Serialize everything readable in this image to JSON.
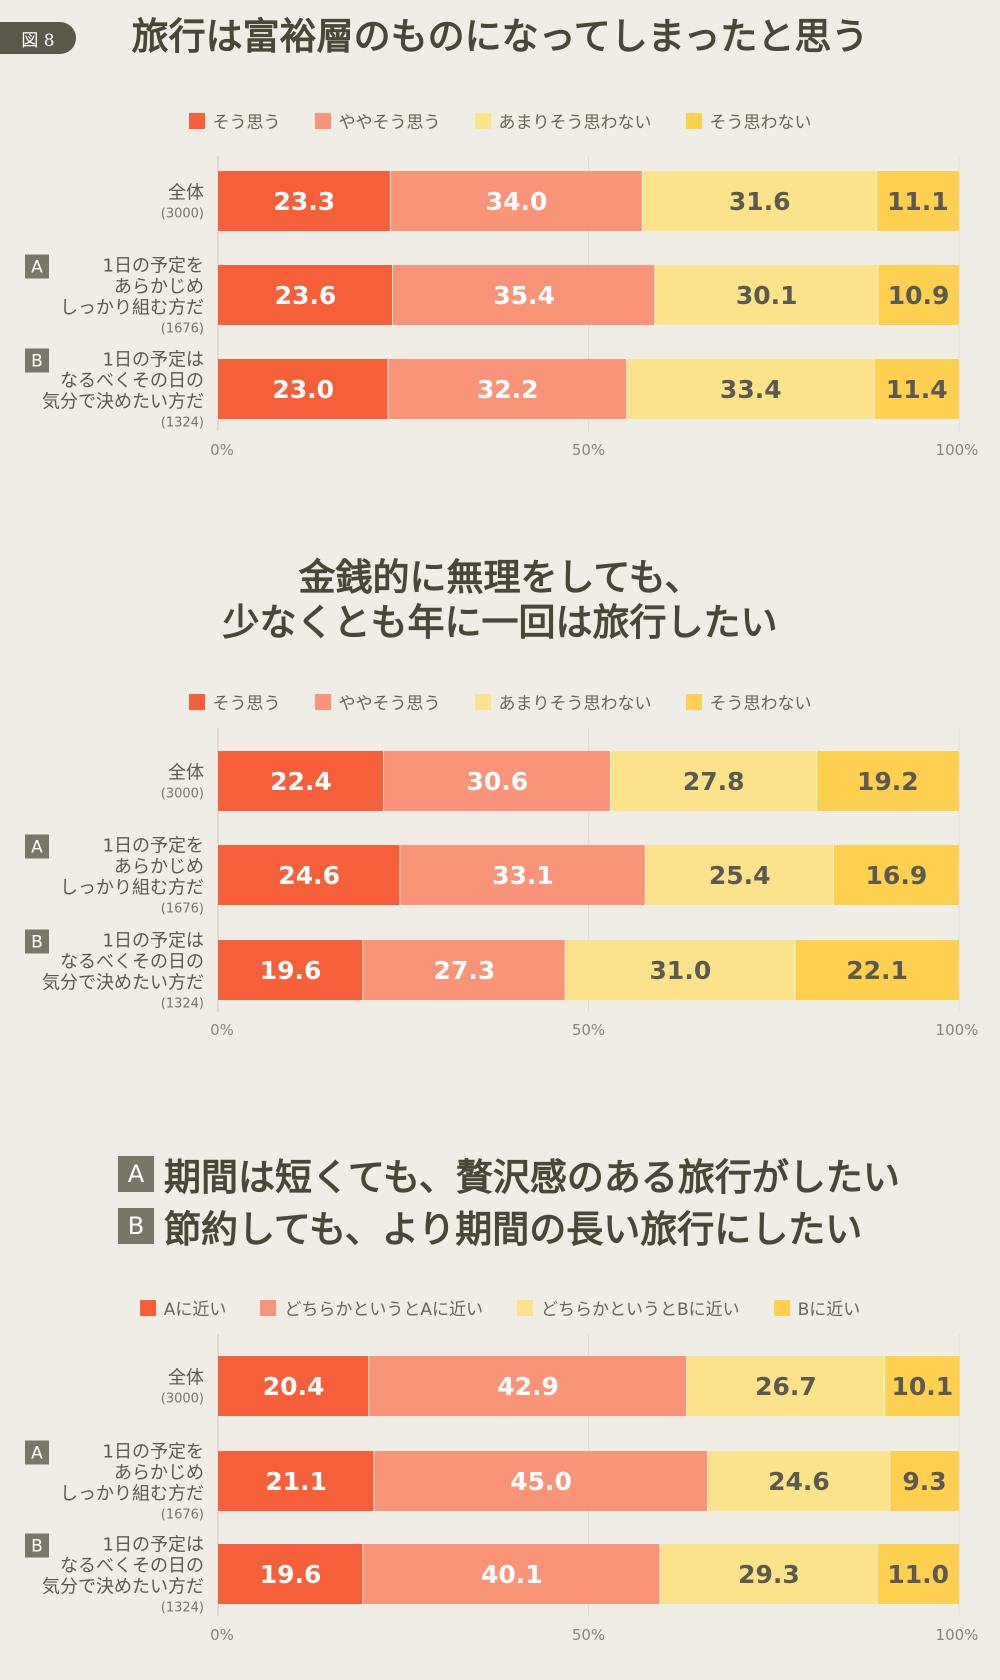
{
  "figure_label": "図 8",
  "colors": {
    "c1": "#f55f3a",
    "c2": "#fa9479",
    "c3": "#fde28c",
    "c4": "#fdd04f",
    "text_dark": "#5c5a50",
    "text_white": "#ffffff"
  },
  "row_labels": [
    {
      "lines": [
        "全体"
      ],
      "n": "(3000)",
      "badge": ""
    },
    {
      "lines": [
        "1日の予定を",
        "あらかじめ",
        "しっかり組む方だ"
      ],
      "n": "(1676)",
      "badge": "A"
    },
    {
      "lines": [
        "1日の予定は",
        "なるべくその日の",
        "気分で決めたい方だ"
      ],
      "n": "(1324)",
      "badge": "B"
    }
  ],
  "charts": [
    {
      "title_lines": [
        "旅行は富裕層のものになってしまったと思う"
      ],
      "legend": [
        "そう思う",
        "ややそう思う",
        "あまりそう思わない",
        "そう思わない"
      ]
    },
    {
      "title_lines": [
        "金銭的に無理をしても、",
        "少なくとも年に一回は旅行したい"
      ],
      "legend": [
        "そう思う",
        "ややそう思う",
        "あまりそう思わない",
        "そう思わない"
      ]
    },
    {
      "title_ab": [
        {
          "badge": "A",
          "text": "期間は短くても、贅沢感のある旅行がしたい"
        },
        {
          "badge": "B",
          "text": "節約しても、より期間の長い旅行にしたい"
        }
      ],
      "legend": [
        "Aに近い",
        "どちらかというとAに近い",
        "どちらかというとBに近い",
        "Bに近い"
      ]
    }
  ],
  "chart_data": [
    {
      "type": "bar",
      "orientation": "horizontal-stacked-100",
      "title": "旅行は富裕層のものになってしまったと思う",
      "categories": [
        "全体",
        "1日の予定をあらかじめしっかり組む方だ",
        "1日の予定はなるべくその日の気分で決めたい方だ"
      ],
      "series": [
        {
          "name": "そう思う",
          "values": [
            23.3,
            23.6,
            23.0
          ]
        },
        {
          "name": "ややそう思う",
          "values": [
            34.0,
            35.4,
            32.2
          ]
        },
        {
          "name": "あまりそう思わない",
          "values": [
            31.6,
            30.1,
            33.4
          ]
        },
        {
          "name": "そう思わない",
          "values": [
            11.1,
            10.9,
            11.4
          ]
        }
      ],
      "xticks": [
        "0%",
        "50%",
        "100%"
      ],
      "xlim": [
        0,
        100
      ]
    },
    {
      "type": "bar",
      "orientation": "horizontal-stacked-100",
      "title": "金銭的に無理をしても、少なくとも年に一回は旅行したい",
      "categories": [
        "全体",
        "1日の予定をあらかじめしっかり組む方だ",
        "1日の予定はなるべくその日の気分で決めたい方だ"
      ],
      "series": [
        {
          "name": "そう思う",
          "values": [
            22.4,
            24.6,
            19.6
          ]
        },
        {
          "name": "ややそう思う",
          "values": [
            30.6,
            33.1,
            27.3
          ]
        },
        {
          "name": "あまりそう思わない",
          "values": [
            27.8,
            25.4,
            31.0
          ]
        },
        {
          "name": "そう思わない",
          "values": [
            19.2,
            16.9,
            22.1
          ]
        }
      ],
      "xticks": [
        "0%",
        "50%",
        "100%"
      ],
      "xlim": [
        0,
        100
      ]
    },
    {
      "type": "bar",
      "orientation": "horizontal-stacked-100",
      "title": "A 期間は短くても、贅沢感のある旅行がしたい / B 節約しても、より期間の長い旅行にしたい",
      "categories": [
        "全体",
        "1日の予定をあらかじめしっかり組む方だ",
        "1日の予定はなるべくその日の気分で決めたい方だ"
      ],
      "series": [
        {
          "name": "Aに近い",
          "values": [
            20.4,
            21.1,
            19.6
          ]
        },
        {
          "name": "どちらかというとAに近い",
          "values": [
            42.9,
            45.0,
            40.1
          ]
        },
        {
          "name": "どちらかというとBに近い",
          "values": [
            26.7,
            24.6,
            29.3
          ]
        },
        {
          "name": "Bに近い",
          "values": [
            10.1,
            9.3,
            11.0
          ]
        }
      ],
      "xticks": [
        "0%",
        "50%",
        "100%"
      ],
      "xlim": [
        0,
        100
      ]
    }
  ]
}
